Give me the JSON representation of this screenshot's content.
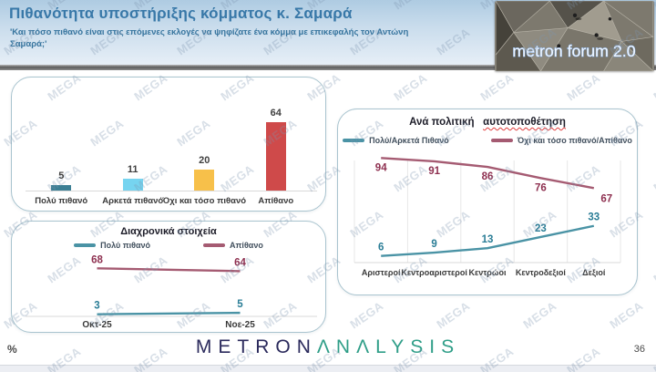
{
  "header": {
    "title": "Πιθανότητα υποστήριξης κόμματος κ. Σαμαρά",
    "subtitle": "'Και πόσο πιθανό είναι στις επόμενες εκλογές να ψηφίζατε ένα κόμμα με επικεφαλής τον Αντώνη Σαμαρά;'",
    "photo_caption": "metron forum 2.0"
  },
  "watermark": {
    "text": "MEGA"
  },
  "footer": {
    "percent_label": "%",
    "logo_part1": "METRON",
    "logo_part2": "ΛNΛLYSIS",
    "page_number": "36"
  },
  "chart_data": [
    {
      "id": "likelihood_bar",
      "type": "bar",
      "title": "",
      "categories": [
        "Πολύ πιθανό",
        "Αρκετά πιθανό",
        "Όχι και τόσο πιθανό",
        "Απίθανο"
      ],
      "values": [
        5,
        11,
        20,
        64
      ],
      "bar_colors": [
        "#3c7f94",
        "#76d4f0",
        "#f7c04a",
        "#cf4a4a"
      ],
      "value_label_color": "#3f3f3f",
      "ylim": [
        0,
        75
      ],
      "grid": false,
      "legend_position": "none"
    },
    {
      "id": "trend",
      "type": "line",
      "title": "Διαχρονικά στοιχεία",
      "categories": [
        "Οκτ-25",
        "Νοε-25"
      ],
      "series": [
        {
          "name": "Πολύ πιθανό",
          "values": [
            3,
            5
          ],
          "color": "#4a93a5",
          "label_color": "#2a7d96",
          "label_side": "above"
        },
        {
          "name": "Απίθανο",
          "values": [
            68,
            64
          ],
          "color": "#a55b72",
          "label_color": "#8e3050",
          "label_side": "above"
        }
      ],
      "ylim": [
        0,
        80
      ],
      "grid": false,
      "legend_position": "top"
    },
    {
      "id": "political",
      "type": "line",
      "title": "Ανά πολιτική αυτοτοποθέτηση",
      "title_parts": [
        "Ανά πολιτική",
        "αυτοτοποθέτηση"
      ],
      "categories": [
        "Αριστεροί",
        "Κεντροαριστεροί",
        "Κεντρώοι",
        "Κεντροδεξιοί",
        "Δεξιοί"
      ],
      "series": [
        {
          "name": "Πολύ/Αρκετά Πιθανό",
          "values": [
            6,
            9,
            13,
            23,
            33
          ],
          "color": "#4a93a5",
          "label_color": "#2a7d96",
          "label_side": "above"
        },
        {
          "name": "Όχι και τόσο πιθανό/Απίθανο",
          "values": [
            94,
            91,
            86,
            76,
            67
          ],
          "color": "#a55b72",
          "label_color": "#8e3050",
          "label_side": "below"
        }
      ],
      "ylim": [
        0,
        100
      ],
      "grid": true,
      "legend_position": "top"
    }
  ]
}
